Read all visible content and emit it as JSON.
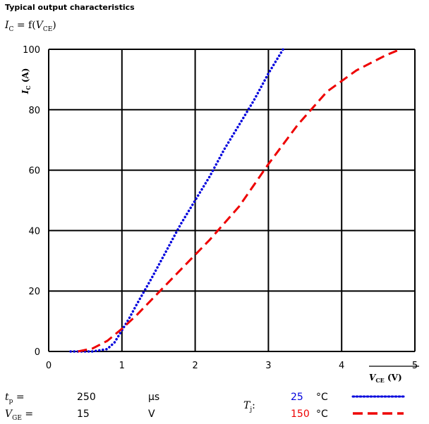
{
  "chart_data": {
    "type": "line",
    "title": "Typical output characteristics",
    "subtitle": "I_C = f(V_CE)",
    "xlabel": "V_CE (V)",
    "ylabel": "I_C (A)",
    "xlim": [
      0,
      5
    ],
    "ylim": [
      0,
      100
    ],
    "xticks": [
      0,
      1,
      2,
      3,
      4,
      5
    ],
    "yticks": [
      0,
      20,
      40,
      60,
      80,
      100
    ],
    "grid": true,
    "series": [
      {
        "name": "25",
        "color": "#0000dd",
        "style": "dotted",
        "x": [
          0.3,
          0.6,
          0.8,
          0.9,
          1.0,
          1.1,
          1.2,
          1.4,
          1.6,
          1.8,
          2.0,
          2.2,
          2.4,
          2.6,
          2.8,
          3.0,
          3.2
        ],
        "y": [
          0,
          0,
          0.8,
          3,
          7,
          11,
          15.5,
          24,
          33,
          42,
          50,
          58,
          67,
          75,
          83,
          92,
          100
        ]
      },
      {
        "name": "150",
        "color": "#ee0000",
        "style": "dashed",
        "x": [
          0.4,
          0.6,
          0.8,
          1.0,
          1.2,
          1.4,
          1.6,
          1.8,
          2.0,
          2.2,
          2.6,
          3.0,
          3.4,
          3.8,
          4.2,
          4.6,
          4.8
        ],
        "y": [
          0,
          1,
          3.5,
          7.5,
          12,
          17,
          22,
          27,
          32,
          37,
          48,
          62,
          75,
          86,
          93,
          98,
          100
        ]
      }
    ]
  },
  "legend": {
    "tp": {
      "label": "t_p =",
      "value": "250",
      "unit": "µs"
    },
    "vge": {
      "label": "V_GE =",
      "value": "15",
      "unit": "V"
    },
    "tj": {
      "label": "T_j:",
      "unit": "°C"
    }
  }
}
